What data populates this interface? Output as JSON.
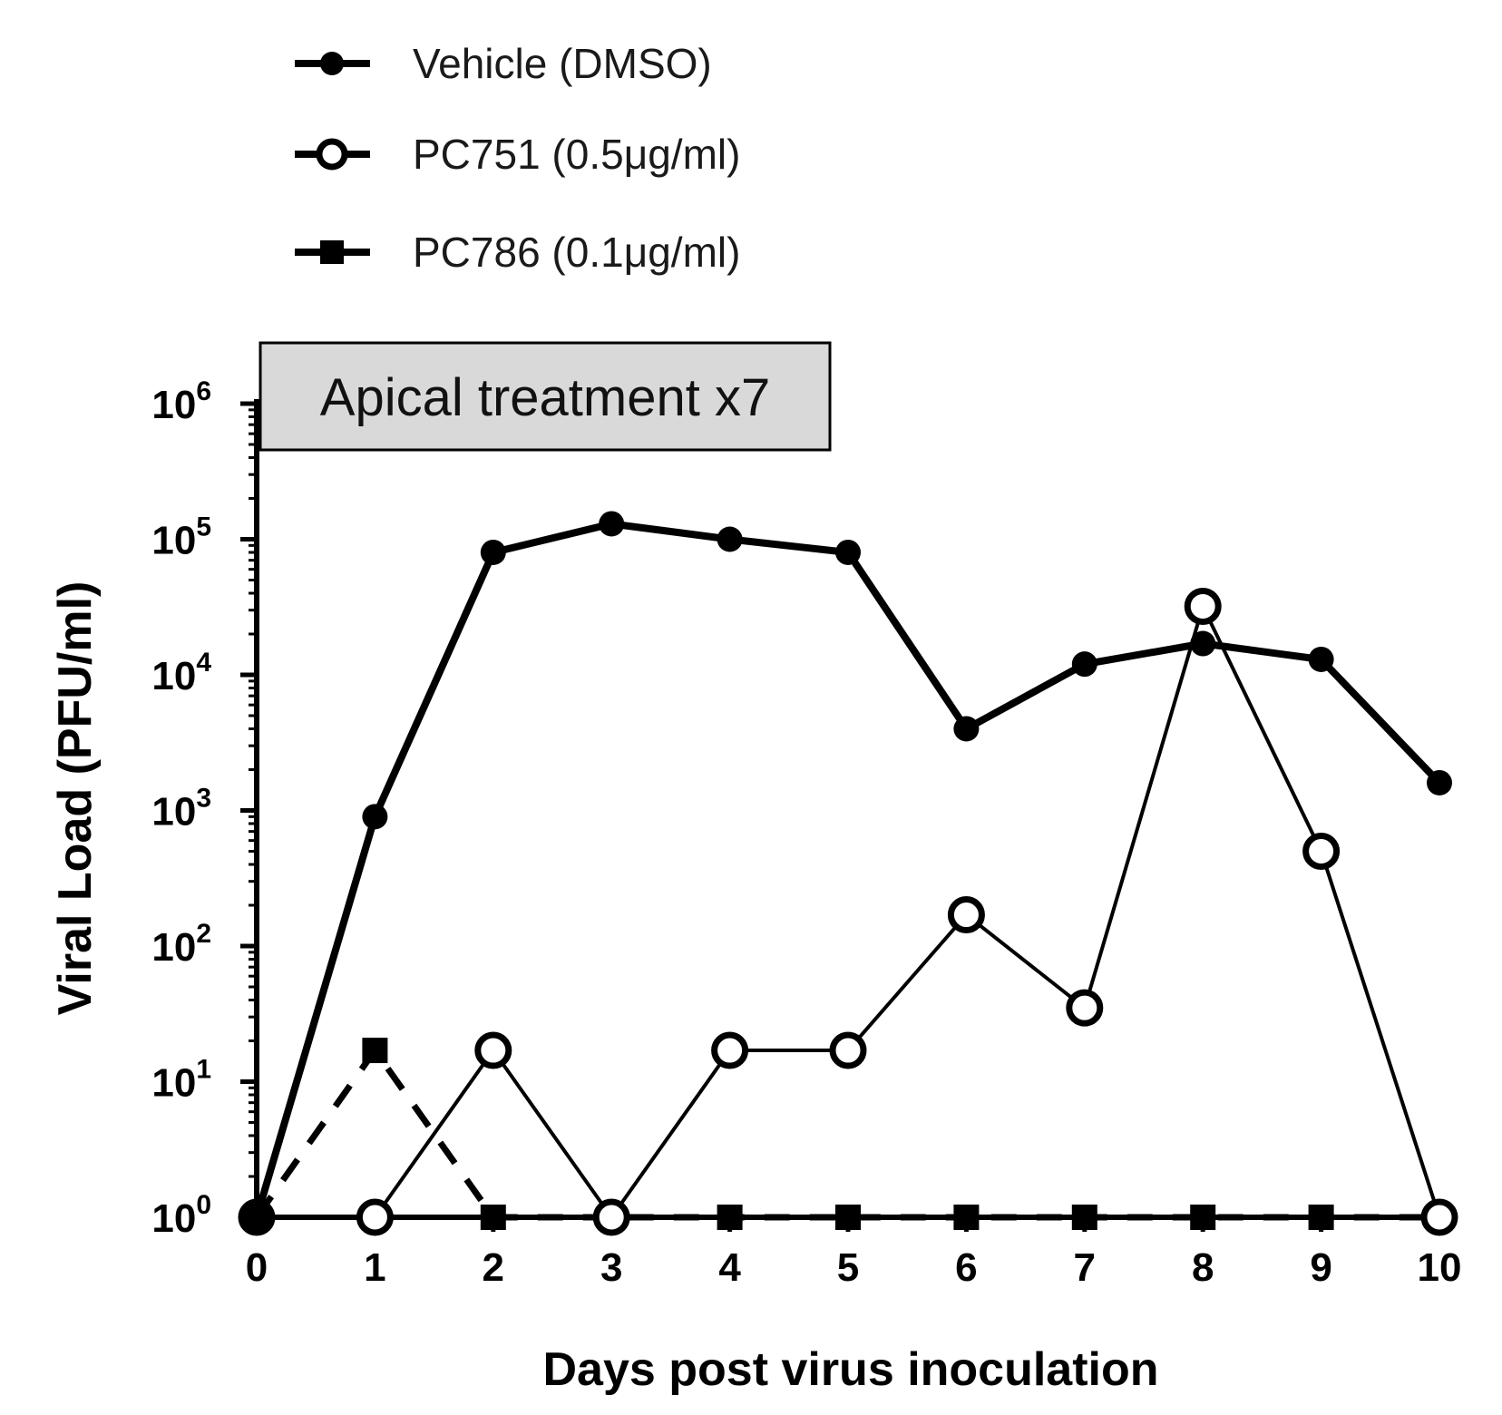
{
  "chart_data": {
    "type": "line",
    "xlabel": "Days post virus inoculation",
    "ylabel": "Viral Load (PFU/ml)",
    "yscale": "log",
    "xlim": [
      0,
      10
    ],
    "ylim": [
      1,
      1000000
    ],
    "x": [
      0,
      1,
      2,
      3,
      4,
      5,
      6,
      7,
      8,
      9,
      10
    ],
    "x_tick_labels": [
      "0",
      "1",
      "2",
      "3",
      "4",
      "5",
      "6",
      "7",
      "8",
      "9",
      "10"
    ],
    "y_tick_labels": [
      {
        "value": 1,
        "base": "10",
        "exp": "0"
      },
      {
        "value": 10,
        "base": "10",
        "exp": "1"
      },
      {
        "value": 100,
        "base": "10",
        "exp": "2"
      },
      {
        "value": 1000,
        "base": "10",
        "exp": "3"
      },
      {
        "value": 10000,
        "base": "10",
        "exp": "4"
      },
      {
        "value": 100000,
        "base": "10",
        "exp": "5"
      },
      {
        "value": 1000000,
        "base": "10",
        "exp": "6"
      }
    ],
    "annotation": "Apical treatment x7",
    "grid": false,
    "legend_position": "top-left",
    "series": [
      {
        "name": "Vehicle (DMSO)",
        "marker": "filled-circle",
        "line": "solid-thick",
        "color": "#000000",
        "values": [
          1,
          900,
          80000,
          130000,
          100000,
          80000,
          4000,
          12000,
          17000,
          13000,
          1600
        ]
      },
      {
        "name": "PC751 (0.5μg/ml)",
        "marker": "open-circle",
        "line": "solid-thin",
        "color": "#000000",
        "values": [
          1,
          1,
          17,
          1,
          17,
          17,
          170,
          35,
          32000,
          500,
          1
        ]
      },
      {
        "name": "PC786 (0.1μg/ml)",
        "marker": "filled-square",
        "line": "dashed",
        "color": "#000000",
        "values": [
          1,
          17,
          1,
          1,
          1,
          1,
          1,
          1,
          1,
          1,
          1
        ]
      }
    ]
  }
}
